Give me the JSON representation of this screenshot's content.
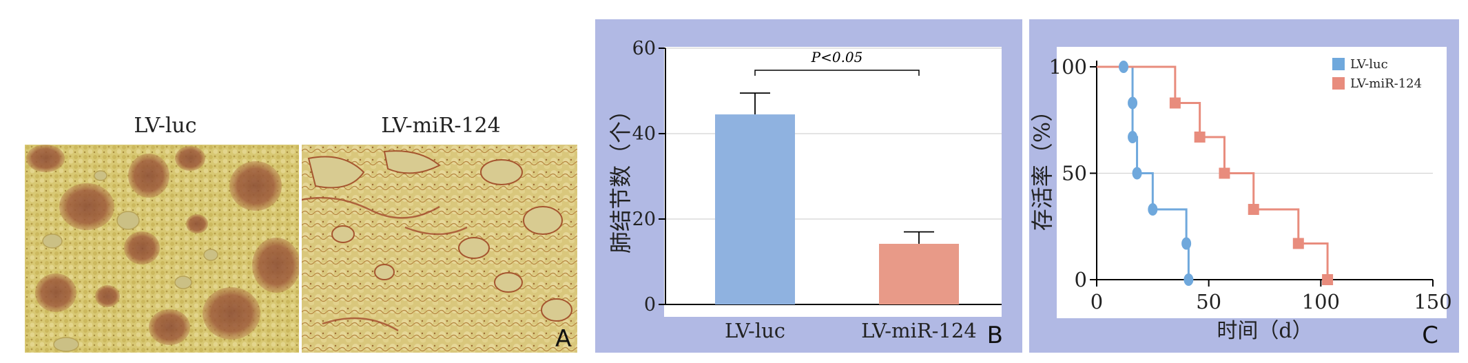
{
  "panel_a": {
    "left_label": "LV-luc",
    "right_label": "LV-miR-124",
    "letter": "A",
    "colors": {
      "tissue": "#d7c56e",
      "tissue_dark": "#c2a653",
      "nodule": "#9b5a3a",
      "airspace": "#ccc086"
    }
  },
  "panel_b": {
    "letter": "B",
    "significance": "P<0.05",
    "colors": {
      "bg": "#b1b9e4",
      "bar1": "#8fb2e0",
      "bar2": "#e89a88"
    }
  },
  "panel_c": {
    "letter": "C",
    "colors": {
      "bg": "#b1b9e4",
      "luc": "#6fa8dc",
      "mir": "#e88c7d"
    }
  },
  "chart_data": [
    {
      "type": "bar",
      "categories": [
        "LV-luc",
        "LV-miR-124"
      ],
      "series": [
        {
          "values": [
            44.5,
            14.2
          ],
          "errors": [
            5.0,
            2.8
          ]
        }
      ],
      "ylabel": "肺结节数（个）",
      "xlabel": "",
      "ylim": [
        0,
        60
      ],
      "yticks": [
        0,
        20,
        40,
        60
      ],
      "grid": true,
      "annotation": "P<0.05"
    },
    {
      "type": "line",
      "step": true,
      "series": [
        {
          "name": "LV-luc",
          "x": [
            12,
            16,
            16,
            18,
            25,
            40,
            41
          ],
          "y": [
            100,
            83,
            67,
            50,
            33,
            17,
            0
          ]
        },
        {
          "name": "LV-miR-124",
          "x": [
            35,
            46,
            57,
            70,
            90,
            103
          ],
          "y": [
            83,
            67,
            50,
            33,
            17,
            0
          ]
        }
      ],
      "xlabel": "时间（d）",
      "ylabel": "存活率（%）",
      "xlim": [
        0,
        150
      ],
      "ylim": [
        0,
        100
      ],
      "xticks": [
        0,
        50,
        100,
        150
      ],
      "yticks": [
        0,
        50,
        100
      ],
      "grid": true,
      "legend": "top-right"
    }
  ]
}
